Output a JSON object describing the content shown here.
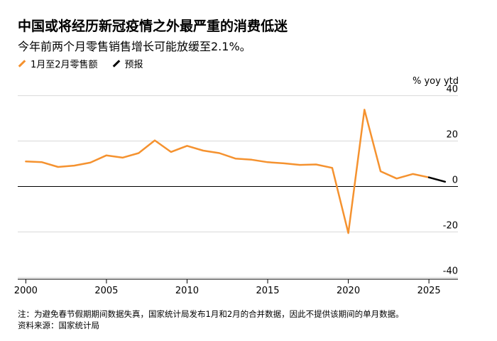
{
  "title": "中国或将经历新冠疫情之外最严重的消费低迷",
  "subtitle": "今年前两个月零售销售增长可能放缓至2.1%。",
  "legend": [
    {
      "label": "1月至2月零售额",
      "color": "#f5922f"
    },
    {
      "label": "预报",
      "color": "#000000"
    }
  ],
  "unit": "% yoy ytd",
  "footnote": "注：为避免春节假期期间数据失真，国家统计局发布1月和2月的合并数据，因此不提供该期间的单月数据。",
  "source": "资料来源：国家统计局",
  "chart_data": {
    "type": "line",
    "xlim": [
      1999.5,
      2026.8
    ],
    "ylim": [
      -43,
      43
    ],
    "xticks": [
      2000,
      2005,
      2010,
      2015,
      2020,
      2025
    ],
    "yticks": [
      40,
      20,
      0,
      -20,
      -40
    ],
    "ytick_labels": [
      "40",
      "20",
      "0",
      "-20",
      "-40"
    ],
    "grid": true,
    "series": [
      {
        "name": "1月至2月零售额",
        "color": "#f5922f",
        "x": [
          2000,
          2001,
          2002,
          2003,
          2004,
          2005,
          2006,
          2007,
          2008,
          2009,
          2010,
          2011,
          2012,
          2013,
          2014,
          2015,
          2016,
          2017,
          2018,
          2019,
          2020,
          2021,
          2022,
          2023,
          2024,
          2025
        ],
        "y": [
          11.0,
          10.7,
          8.6,
          9.2,
          10.5,
          13.7,
          12.7,
          14.7,
          20.3,
          15.2,
          17.9,
          15.8,
          14.7,
          12.3,
          11.8,
          10.7,
          10.2,
          9.5,
          9.7,
          8.2,
          -20.5,
          33.8,
          6.7,
          3.5,
          5.5,
          4.0
        ]
      },
      {
        "name": "预报",
        "color": "#000000",
        "x": [
          2025,
          2026
        ],
        "y": [
          4.0,
          2.1
        ]
      }
    ]
  }
}
